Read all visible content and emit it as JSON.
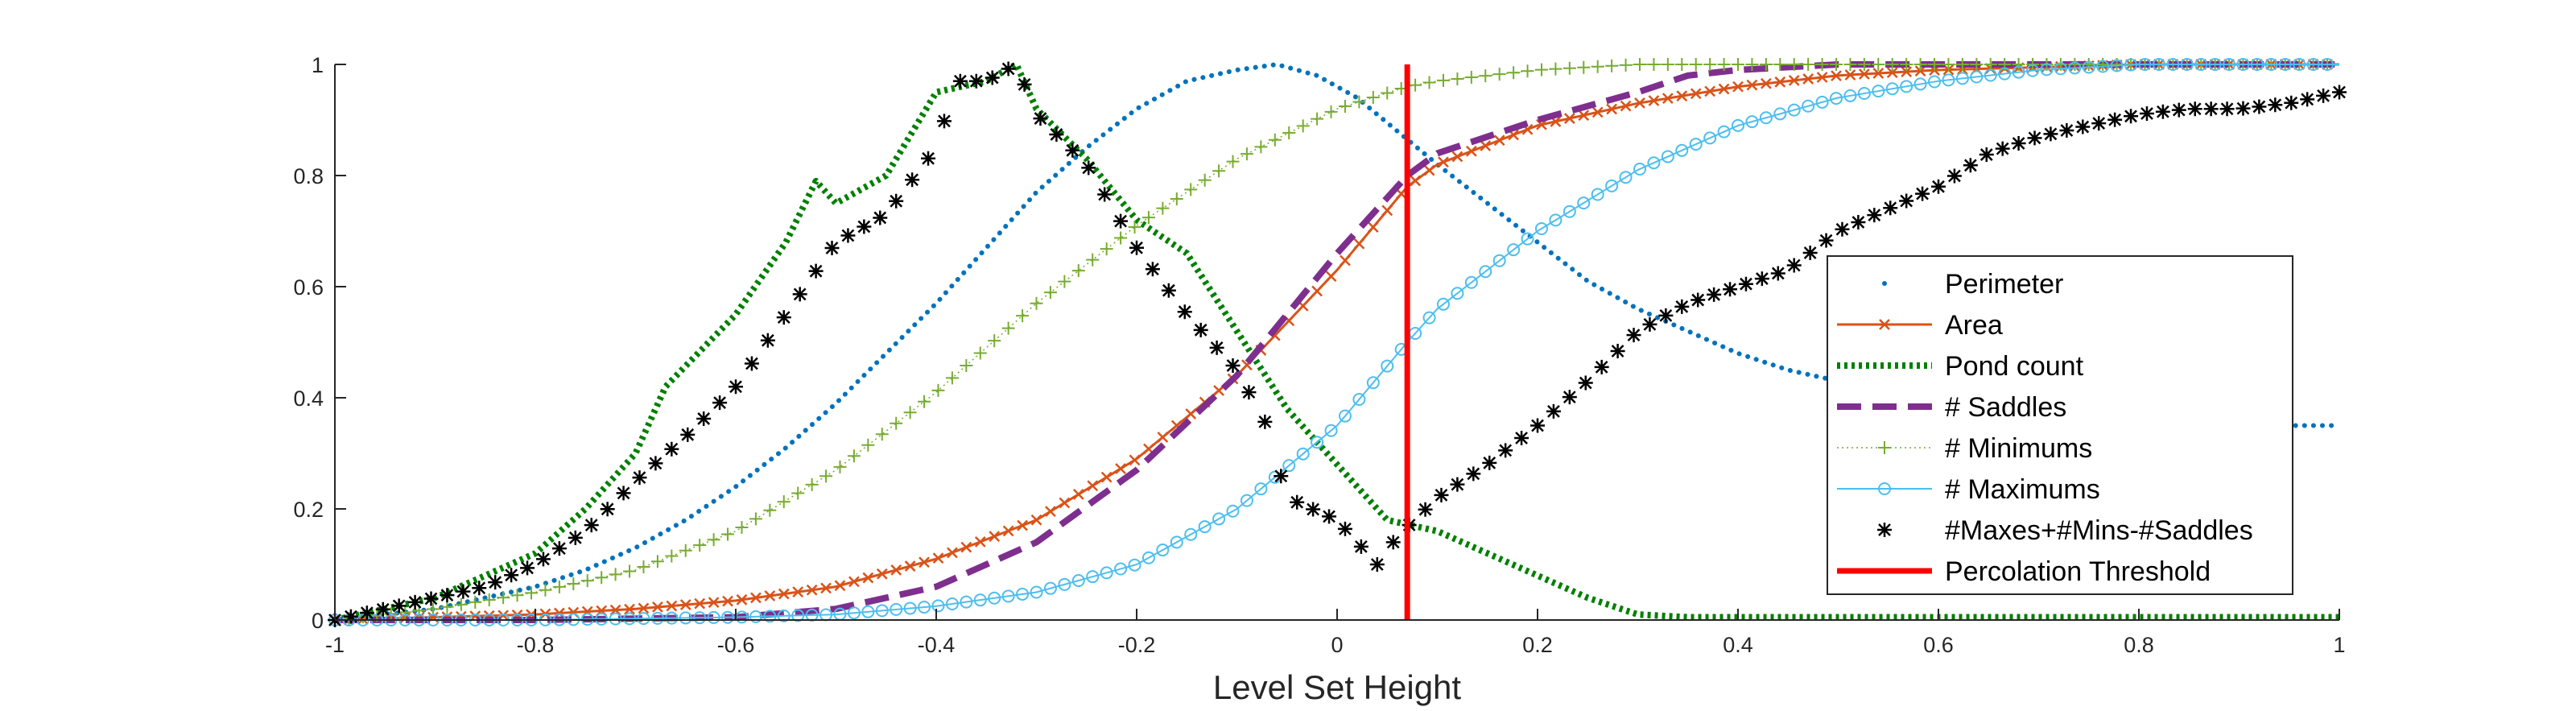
{
  "chart_data": {
    "type": "line",
    "title": "",
    "xlabel": "Level Set Height",
    "ylabel": "",
    "xlim": [
      -1,
      1
    ],
    "ylim": [
      0,
      1
    ],
    "xticks": [
      "-1",
      "-0.8",
      "-0.6",
      "-0.4",
      "-0.2",
      "0",
      "0.2",
      "0.4",
      "0.6",
      "0.8",
      "1"
    ],
    "yticks": [
      "0",
      "0.2",
      "0.4",
      "0.6",
      "0.8",
      "1"
    ],
    "grid": false,
    "legend_position": "bottom-right",
    "threshold": {
      "name": "Percolation Threshold",
      "x": 0.07,
      "color": "#ff0000"
    },
    "series": [
      {
        "name": "Perimeter",
        "color": "#0072bd",
        "style": "dotted",
        "marker": "dot",
        "x": [
          -1,
          -0.95,
          -0.9,
          -0.85,
          -0.8,
          -0.75,
          -0.7,
          -0.65,
          -0.6,
          -0.55,
          -0.5,
          -0.45,
          -0.4,
          -0.35,
          -0.3,
          -0.25,
          -0.2,
          -0.15,
          -0.1,
          -0.06,
          -0.02,
          0.02,
          0.06,
          0.1,
          0.15,
          0.2,
          0.25,
          0.3,
          0.35,
          0.4,
          0.45,
          0.5,
          0.55,
          0.6,
          0.65,
          0.7,
          0.75,
          0.8,
          0.85,
          0.9,
          0.95,
          1
        ],
        "y": [
          0,
          0.01,
          0.02,
          0.04,
          0.06,
          0.09,
          0.13,
          0.18,
          0.24,
          0.31,
          0.39,
          0.48,
          0.57,
          0.67,
          0.77,
          0.85,
          0.92,
          0.97,
          0.99,
          1,
          0.98,
          0.94,
          0.88,
          0.82,
          0.75,
          0.68,
          0.61,
          0.56,
          0.52,
          0.48,
          0.45,
          0.43,
          0.41,
          0.4,
          0.39,
          0.38,
          0.37,
          0.365,
          0.36,
          0.355,
          0.35,
          0.35
        ]
      },
      {
        "name": "Area",
        "color": "#d95319",
        "style": "solid",
        "marker": "x",
        "x": [
          -1,
          -0.9,
          -0.8,
          -0.7,
          -0.6,
          -0.5,
          -0.4,
          -0.3,
          -0.2,
          -0.1,
          0,
          0.07,
          0.1,
          0.2,
          0.3,
          0.4,
          0.5,
          0.6,
          0.7,
          0.8,
          0.9,
          1
        ],
        "y": [
          0,
          0.005,
          0.01,
          0.02,
          0.035,
          0.06,
          0.11,
          0.18,
          0.29,
          0.44,
          0.63,
          0.78,
          0.82,
          0.89,
          0.93,
          0.96,
          0.98,
          0.99,
          0.995,
          1,
          1,
          1
        ]
      },
      {
        "name": "Pond count",
        "color": "#008000",
        "style": "dotted-thick",
        "marker": "none",
        "x": [
          -1,
          -0.95,
          -0.9,
          -0.85,
          -0.8,
          -0.75,
          -0.7,
          -0.67,
          -0.6,
          -0.55,
          -0.52,
          -0.5,
          -0.45,
          -0.4,
          -0.35,
          -0.32,
          -0.3,
          -0.25,
          -0.2,
          -0.15,
          -0.1,
          -0.05,
          0,
          0.05,
          0.1,
          0.15,
          0.2,
          0.25,
          0.3,
          0.35,
          0.4,
          0.5,
          0.6,
          0.7,
          0.8,
          0.9,
          1
        ],
        "y": [
          0,
          0.02,
          0.04,
          0.08,
          0.12,
          0.2,
          0.3,
          0.42,
          0.55,
          0.68,
          0.79,
          0.75,
          0.8,
          0.95,
          0.97,
          1,
          0.92,
          0.83,
          0.72,
          0.66,
          0.52,
          0.38,
          0.28,
          0.18,
          0.16,
          0.12,
          0.08,
          0.04,
          0.01,
          0.005,
          0.005,
          0.005,
          0.005,
          0.005,
          0.005,
          0.005,
          0.005
        ]
      },
      {
        "name": "# Saddles",
        "color": "#7e2f8e",
        "style": "dashed",
        "marker": "none",
        "x": [
          -1,
          -0.8,
          -0.6,
          -0.5,
          -0.4,
          -0.3,
          -0.2,
          -0.1,
          0,
          0.07,
          0.1,
          0.2,
          0.3,
          0.35,
          0.4,
          0.5,
          0.6,
          0.7,
          0.8,
          1
        ],
        "y": [
          0,
          0,
          0.005,
          0.02,
          0.06,
          0.14,
          0.27,
          0.44,
          0.66,
          0.8,
          0.84,
          0.9,
          0.95,
          0.98,
          0.99,
          1,
          1,
          1,
          1,
          1
        ]
      },
      {
        "name": "# Minimums",
        "color": "#77ac30",
        "style": "dotted-thin",
        "marker": "plus",
        "x": [
          -1,
          -0.9,
          -0.8,
          -0.7,
          -0.6,
          -0.5,
          -0.4,
          -0.3,
          -0.2,
          -0.1,
          0,
          0.07,
          0.1,
          0.2,
          0.3,
          0.4,
          0.5,
          0.6,
          0.8,
          1
        ],
        "y": [
          0,
          0.02,
          0.05,
          0.09,
          0.16,
          0.27,
          0.41,
          0.57,
          0.71,
          0.83,
          0.92,
          0.96,
          0.97,
          0.99,
          1,
          1,
          1,
          1,
          1,
          1
        ]
      },
      {
        "name": "# Maximums",
        "color": "#4dbeee",
        "style": "solid-thin",
        "marker": "circle",
        "x": [
          -1,
          -0.8,
          -0.6,
          -0.5,
          -0.4,
          -0.3,
          -0.2,
          -0.1,
          0,
          0.07,
          0.1,
          0.2,
          0.3,
          0.4,
          0.5,
          0.6,
          0.7,
          0.8,
          0.9,
          1
        ],
        "y": [
          0,
          0,
          0.005,
          0.01,
          0.025,
          0.05,
          0.1,
          0.2,
          0.35,
          0.5,
          0.56,
          0.7,
          0.81,
          0.89,
          0.94,
          0.97,
          0.99,
          1,
          1,
          1
        ]
      },
      {
        "name": "#Maxes+#Mins-#Saddles",
        "color": "#000000",
        "style": "none",
        "marker": "star",
        "x": [
          -1,
          -0.95,
          -0.9,
          -0.85,
          -0.8,
          -0.75,
          -0.7,
          -0.65,
          -0.6,
          -0.55,
          -0.5,
          -0.45,
          -0.4,
          -0.38,
          -0.35,
          -0.32,
          -0.3,
          -0.25,
          -0.2,
          -0.15,
          -0.1,
          -0.07,
          -0.05,
          0,
          0.04,
          0.06,
          0.1,
          0.15,
          0.2,
          0.25,
          0.3,
          0.35,
          0.4,
          0.45,
          0.5,
          0.55,
          0.6,
          0.65,
          0.7,
          0.75,
          0.8,
          0.85,
          0.9,
          0.95,
          1
        ],
        "y": [
          0,
          0.02,
          0.04,
          0.06,
          0.1,
          0.16,
          0.25,
          0.33,
          0.42,
          0.55,
          0.68,
          0.73,
          0.85,
          0.97,
          0.97,
          1,
          0.91,
          0.82,
          0.67,
          0.55,
          0.45,
          0.35,
          0.22,
          0.18,
          0.1,
          0.15,
          0.22,
          0.28,
          0.35,
          0.43,
          0.52,
          0.57,
          0.6,
          0.63,
          0.7,
          0.74,
          0.78,
          0.84,
          0.87,
          0.89,
          0.91,
          0.92,
          0.92,
          0.93,
          0.95
        ]
      }
    ]
  }
}
